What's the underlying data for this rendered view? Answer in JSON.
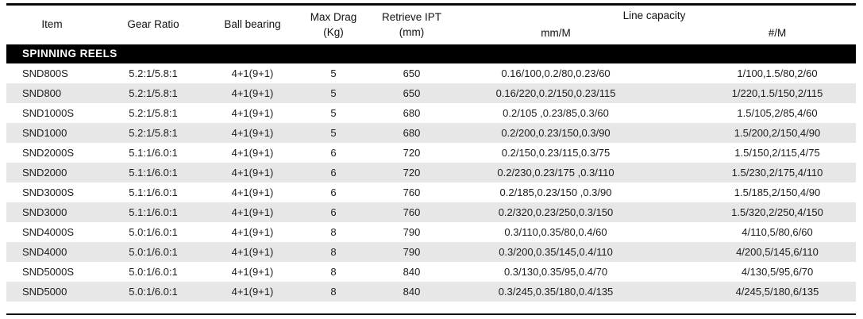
{
  "table": {
    "section_header": "SPINNING REELS",
    "line_capacity_group_label": "Line capacity",
    "columns": [
      {
        "key": "item",
        "label": "Item",
        "sub": ""
      },
      {
        "key": "gear-ratio",
        "label": "Gear Ratio",
        "sub": ""
      },
      {
        "key": "ball-bearing",
        "label": "Ball bearing",
        "sub": ""
      },
      {
        "key": "max-drag",
        "label": "Max Drag",
        "sub": "(Kg)"
      },
      {
        "key": "retrieve-ipt",
        "label": "Retrieve IPT",
        "sub": "(mm)"
      },
      {
        "key": "line-capacity-mm-m",
        "label": "mm/M",
        "sub": ""
      },
      {
        "key": "line-capacity-hash-m",
        "label": "#/M",
        "sub": ""
      }
    ],
    "rows": [
      [
        "SND800S",
        "5.2:1/5.8:1",
        "4+1(9+1)",
        "5",
        "650",
        "0.16/100,0.2/80,0.23/60",
        "1/100,1.5/80,2/60"
      ],
      [
        "SND800",
        "5.2:1/5.8:1",
        "4+1(9+1)",
        "5",
        "650",
        "0.16/220,0.2/150,0.23/115",
        "1/220,1.5/150,2/115"
      ],
      [
        "SND1000S",
        "5.2:1/5.8:1",
        "4+1(9+1)",
        "5",
        "680",
        "0.2/105 ,0.23/85,0.3/60",
        "1.5/105,2/85,4/60"
      ],
      [
        "SND1000",
        "5.2:1/5.8:1",
        "4+1(9+1)",
        "5",
        "680",
        "0.2/200,0.23/150,0.3/90",
        "1.5/200,2/150,4/90"
      ],
      [
        "SND2000S",
        "5.1:1/6.0:1",
        "4+1(9+1)",
        "6",
        "720",
        "0.2/150,0.23/115,0.3/75",
        "1.5/150,2/115,4/75"
      ],
      [
        "SND2000",
        "5.1:1/6.0:1",
        "4+1(9+1)",
        "6",
        "720",
        "0.2/230,0.23/175 ,0.3/110",
        "1.5/230,2/175,4/110"
      ],
      [
        "SND3000S",
        "5.1:1/6.0:1",
        "4+1(9+1)",
        "6",
        "760",
        "0.2/185,0.23/150 ,0.3/90",
        "1.5/185,2/150,4/90"
      ],
      [
        "SND3000",
        "5.1:1/6.0:1",
        "4+1(9+1)",
        "6",
        "760",
        "0.2/320,0.23/250,0.3/150",
        "1.5/320,2/250,4/150"
      ],
      [
        "SND4000S",
        "5.0:1/6.0:1",
        "4+1(9+1)",
        "8",
        "790",
        "0.3/110,0.35/80,0.4/60",
        "4/110,5/80,6/60"
      ],
      [
        "SND4000",
        "5.0:1/6.0:1",
        "4+1(9+1)",
        "8",
        "790",
        "0.3/200,0.35/145,0.4/110",
        "4/200,5/145,6/110"
      ],
      [
        "SND5000S",
        "5.0:1/6.0:1",
        "4+1(9+1)",
        "8",
        "840",
        "0.3/130,0.35/95,0.4/70",
        "4/130,5/95,6/70"
      ],
      [
        "SND5000",
        "5.0:1/6.0:1",
        "4+1(9+1)",
        "8",
        "840",
        "0.3/245,0.35/180,0.4/135",
        "4/245,5/180,6/135"
      ]
    ]
  },
  "colors": {
    "row_stripe": "#e7e7e7",
    "section_bar_bg": "#000000",
    "section_bar_text": "#ffffff",
    "rule": "#0a0a0a",
    "text": "#1c1c1c"
  }
}
